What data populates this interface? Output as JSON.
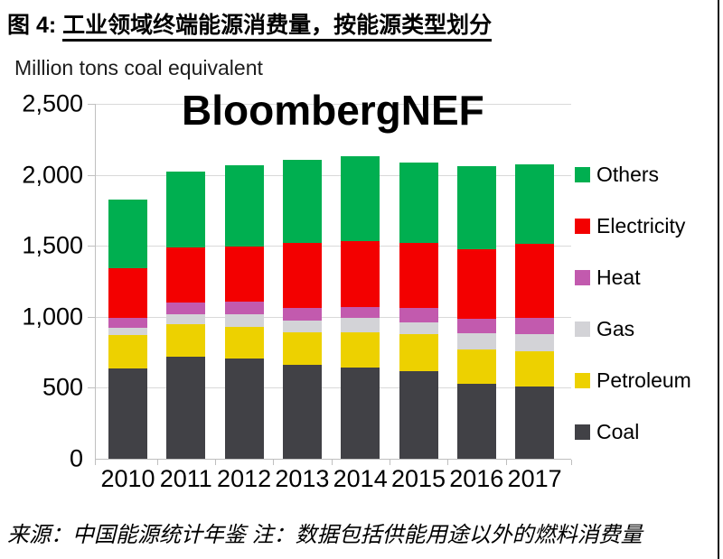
{
  "figure": {
    "title_prefix": "图 4: ",
    "title_underlined": "工业领域终端能源消费量，按能源类型划分",
    "unit_label": "Million tons coal equivalent",
    "watermark": "BloombergNEF",
    "source_note": "来源：中国能源统计年鉴 注：数据包括供能用途以外的燃料消费量"
  },
  "chart_data": {
    "type": "bar",
    "stacked": true,
    "title": "工业领域终端能源消费量，按能源类型划分",
    "xlabel": "",
    "ylabel": "Million tons coal equivalent",
    "ylim": [
      0,
      2500
    ],
    "ytick_values": [
      0,
      500,
      1000,
      1500,
      2000,
      2500
    ],
    "ytick_labels": [
      "0",
      "500",
      "1,000",
      "1,500",
      "2,000",
      "2,500"
    ],
    "grid": true,
    "legend_position": "right",
    "categories": [
      "2010",
      "2011",
      "2012",
      "2013",
      "2014",
      "2015",
      "2016",
      "2017"
    ],
    "series": [
      {
        "name": "Coal",
        "color": "#414146",
        "values": [
          635,
          720,
          705,
          660,
          645,
          620,
          530,
          510
        ]
      },
      {
        "name": "Petroleum",
        "color": "#edd100",
        "values": [
          235,
          225,
          225,
          230,
          245,
          255,
          240,
          250
        ]
      },
      {
        "name": "Gas",
        "color": "#d3d3d7",
        "values": [
          50,
          75,
          90,
          85,
          100,
          85,
          115,
          120
        ]
      },
      {
        "name": "Heat",
        "color": "#c25aae",
        "values": [
          70,
          80,
          85,
          85,
          80,
          100,
          100,
          115
        ]
      },
      {
        "name": "Electricity",
        "color": "#f30000",
        "values": [
          355,
          390,
          390,
          460,
          460,
          460,
          490,
          520
        ]
      },
      {
        "name": "Others",
        "color": "#00af50",
        "values": [
          480,
          530,
          570,
          585,
          600,
          565,
          585,
          560
        ]
      }
    ],
    "legend_order": [
      "Others",
      "Electricity",
      "Heat",
      "Gas",
      "Petroleum",
      "Coal"
    ],
    "totals": [
      1825,
      2020,
      2065,
      2105,
      2130,
      2085,
      2060,
      2075
    ]
  }
}
